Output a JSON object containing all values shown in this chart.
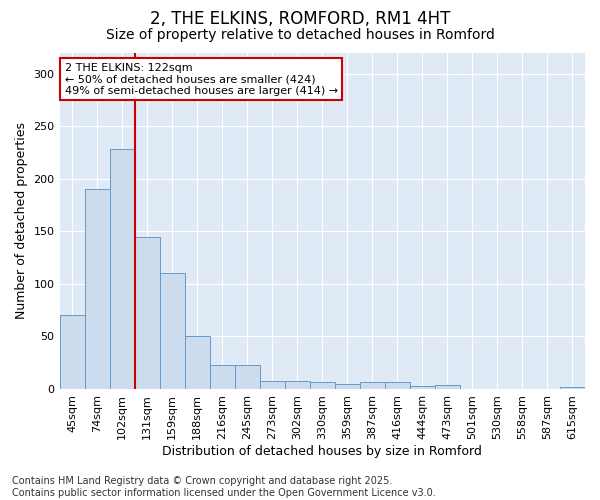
{
  "title": "2, THE ELKINS, ROMFORD, RM1 4HT",
  "subtitle": "Size of property relative to detached houses in Romford",
  "xlabel": "Distribution of detached houses by size in Romford",
  "ylabel": "Number of detached properties",
  "categories": [
    "45sqm",
    "74sqm",
    "102sqm",
    "131sqm",
    "159sqm",
    "188sqm",
    "216sqm",
    "245sqm",
    "273sqm",
    "302sqm",
    "330sqm",
    "359sqm",
    "387sqm",
    "416sqm",
    "444sqm",
    "473sqm",
    "501sqm",
    "530sqm",
    "558sqm",
    "587sqm",
    "615sqm"
  ],
  "values": [
    70,
    190,
    228,
    145,
    110,
    50,
    23,
    23,
    8,
    8,
    7,
    5,
    7,
    7,
    3,
    4,
    0,
    0,
    0,
    0,
    2
  ],
  "bar_color": "#cddcec",
  "bar_edge_color": "#6699cc",
  "vline_color": "#cc0000",
  "vline_x_index": 2,
  "annotation_line1": "2 THE ELKINS: 122sqm",
  "annotation_line2": "← 50% of detached houses are smaller (424)",
  "annotation_line3": "49% of semi-detached houses are larger (414) →",
  "annotation_box_color": "#ffffff",
  "annotation_border_color": "#cc0000",
  "footer_text": "Contains HM Land Registry data © Crown copyright and database right 2025.\nContains public sector information licensed under the Open Government Licence v3.0.",
  "ylim": [
    0,
    320
  ],
  "bg_color": "#ffffff",
  "plot_bg_color": "#e0eaf6",
  "grid_color": "#ffffff",
  "title_fontsize": 12,
  "subtitle_fontsize": 10,
  "axis_label_fontsize": 9,
  "tick_fontsize": 8,
  "annotation_fontsize": 8,
  "footer_fontsize": 7
}
